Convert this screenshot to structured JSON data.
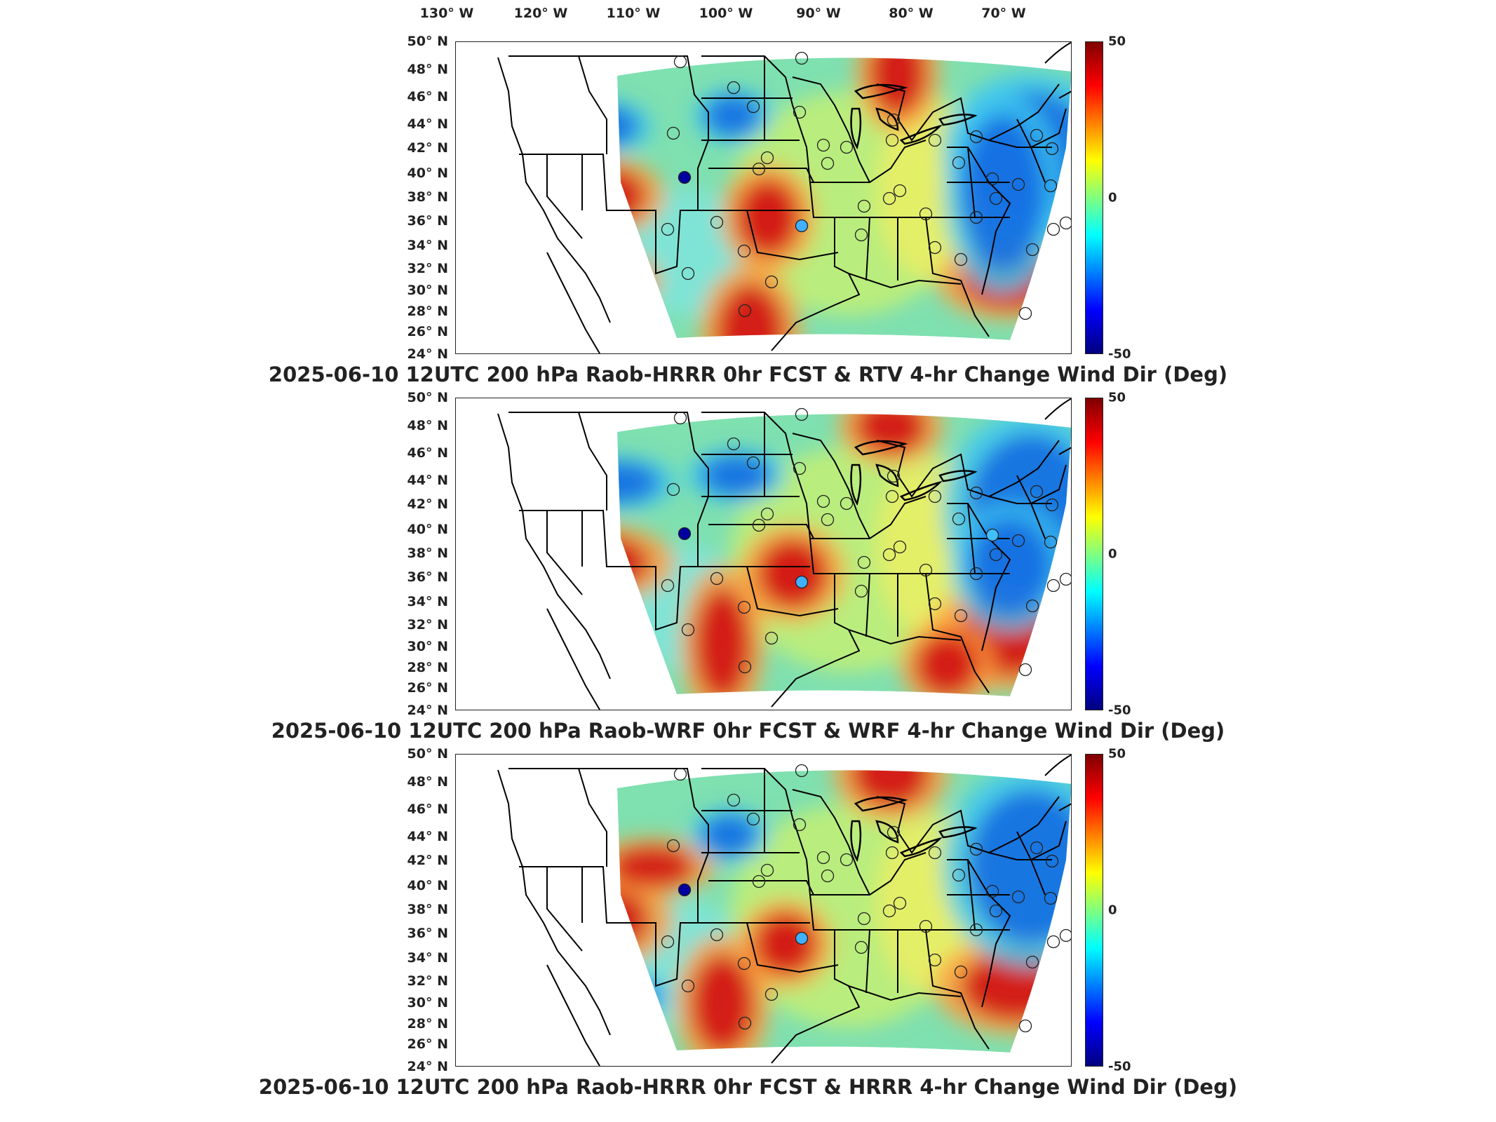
{
  "lon_labels": [
    "130° W",
    "120° W",
    "110° W",
    "100° W",
    "90° W",
    "80° W",
    "70° W"
  ],
  "lat_labels": [
    "50° N",
    "48° N",
    "46° N",
    "44° N",
    "42° N",
    "40° N",
    "38° N",
    "36° N",
    "34° N",
    "32° N",
    "30° N",
    "28° N",
    "26° N",
    "24° N"
  ],
  "colorbar": {
    "max": "50",
    "mid": "0",
    "min": "-50",
    "colors": [
      "#7f0000",
      "#ff0000",
      "#ff8000",
      "#ffff00",
      "#80ff80",
      "#00ffff",
      "#0080ff",
      "#0000ff",
      "#00007f"
    ]
  },
  "panels": [
    {
      "caption": "2025-06-10 12UTC 200 hPa Raob-HRRR 0hr FCST & RTV 4-hr Change Wind Dir (Deg)"
    },
    {
      "caption": "2025-06-10 12UTC 200 hPa Raob-WRF 0hr FCST & WRF 4-hr Change Wind Dir (Deg)"
    },
    {
      "caption": "2025-06-10 12UTC 200 hPa Raob-HRRR 0hr FCST & HRRR 4-hr Change Wind Dir (Deg)"
    }
  ]
}
